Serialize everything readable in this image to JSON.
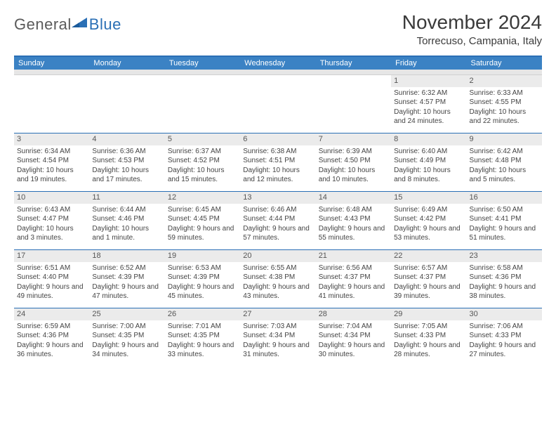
{
  "logo": {
    "text1": "General",
    "text2": "Blue"
  },
  "title": "November 2024",
  "location": "Torrecuso, Campania, Italy",
  "colors": {
    "header_bg": "#3b82c4",
    "header_border": "#2a6fb5",
    "row_divider": "#2a6fb5",
    "daynum_bg": "#ebebeb",
    "text": "#444444"
  },
  "day_headers": [
    "Sunday",
    "Monday",
    "Tuesday",
    "Wednesday",
    "Thursday",
    "Friday",
    "Saturday"
  ],
  "weeks": [
    [
      null,
      null,
      null,
      null,
      null,
      {
        "n": "1",
        "sunrise": "6:32 AM",
        "sunset": "4:57 PM",
        "daylight": "10 hours and 24 minutes."
      },
      {
        "n": "2",
        "sunrise": "6:33 AM",
        "sunset": "4:55 PM",
        "daylight": "10 hours and 22 minutes."
      }
    ],
    [
      {
        "n": "3",
        "sunrise": "6:34 AM",
        "sunset": "4:54 PM",
        "daylight": "10 hours and 19 minutes."
      },
      {
        "n": "4",
        "sunrise": "6:36 AM",
        "sunset": "4:53 PM",
        "daylight": "10 hours and 17 minutes."
      },
      {
        "n": "5",
        "sunrise": "6:37 AM",
        "sunset": "4:52 PM",
        "daylight": "10 hours and 15 minutes."
      },
      {
        "n": "6",
        "sunrise": "6:38 AM",
        "sunset": "4:51 PM",
        "daylight": "10 hours and 12 minutes."
      },
      {
        "n": "7",
        "sunrise": "6:39 AM",
        "sunset": "4:50 PM",
        "daylight": "10 hours and 10 minutes."
      },
      {
        "n": "8",
        "sunrise": "6:40 AM",
        "sunset": "4:49 PM",
        "daylight": "10 hours and 8 minutes."
      },
      {
        "n": "9",
        "sunrise": "6:42 AM",
        "sunset": "4:48 PM",
        "daylight": "10 hours and 5 minutes."
      }
    ],
    [
      {
        "n": "10",
        "sunrise": "6:43 AM",
        "sunset": "4:47 PM",
        "daylight": "10 hours and 3 minutes."
      },
      {
        "n": "11",
        "sunrise": "6:44 AM",
        "sunset": "4:46 PM",
        "daylight": "10 hours and 1 minute."
      },
      {
        "n": "12",
        "sunrise": "6:45 AM",
        "sunset": "4:45 PM",
        "daylight": "9 hours and 59 minutes."
      },
      {
        "n": "13",
        "sunrise": "6:46 AM",
        "sunset": "4:44 PM",
        "daylight": "9 hours and 57 minutes."
      },
      {
        "n": "14",
        "sunrise": "6:48 AM",
        "sunset": "4:43 PM",
        "daylight": "9 hours and 55 minutes."
      },
      {
        "n": "15",
        "sunrise": "6:49 AM",
        "sunset": "4:42 PM",
        "daylight": "9 hours and 53 minutes."
      },
      {
        "n": "16",
        "sunrise": "6:50 AM",
        "sunset": "4:41 PM",
        "daylight": "9 hours and 51 minutes."
      }
    ],
    [
      {
        "n": "17",
        "sunrise": "6:51 AM",
        "sunset": "4:40 PM",
        "daylight": "9 hours and 49 minutes."
      },
      {
        "n": "18",
        "sunrise": "6:52 AM",
        "sunset": "4:39 PM",
        "daylight": "9 hours and 47 minutes."
      },
      {
        "n": "19",
        "sunrise": "6:53 AM",
        "sunset": "4:39 PM",
        "daylight": "9 hours and 45 minutes."
      },
      {
        "n": "20",
        "sunrise": "6:55 AM",
        "sunset": "4:38 PM",
        "daylight": "9 hours and 43 minutes."
      },
      {
        "n": "21",
        "sunrise": "6:56 AM",
        "sunset": "4:37 PM",
        "daylight": "9 hours and 41 minutes."
      },
      {
        "n": "22",
        "sunrise": "6:57 AM",
        "sunset": "4:37 PM",
        "daylight": "9 hours and 39 minutes."
      },
      {
        "n": "23",
        "sunrise": "6:58 AM",
        "sunset": "4:36 PM",
        "daylight": "9 hours and 38 minutes."
      }
    ],
    [
      {
        "n": "24",
        "sunrise": "6:59 AM",
        "sunset": "4:36 PM",
        "daylight": "9 hours and 36 minutes."
      },
      {
        "n": "25",
        "sunrise": "7:00 AM",
        "sunset": "4:35 PM",
        "daylight": "9 hours and 34 minutes."
      },
      {
        "n": "26",
        "sunrise": "7:01 AM",
        "sunset": "4:35 PM",
        "daylight": "9 hours and 33 minutes."
      },
      {
        "n": "27",
        "sunrise": "7:03 AM",
        "sunset": "4:34 PM",
        "daylight": "9 hours and 31 minutes."
      },
      {
        "n": "28",
        "sunrise": "7:04 AM",
        "sunset": "4:34 PM",
        "daylight": "9 hours and 30 minutes."
      },
      {
        "n": "29",
        "sunrise": "7:05 AM",
        "sunset": "4:33 PM",
        "daylight": "9 hours and 28 minutes."
      },
      {
        "n": "30",
        "sunrise": "7:06 AM",
        "sunset": "4:33 PM",
        "daylight": "9 hours and 27 minutes."
      }
    ]
  ],
  "labels": {
    "sunrise": "Sunrise: ",
    "sunset": "Sunset: ",
    "daylight": "Daylight: "
  }
}
